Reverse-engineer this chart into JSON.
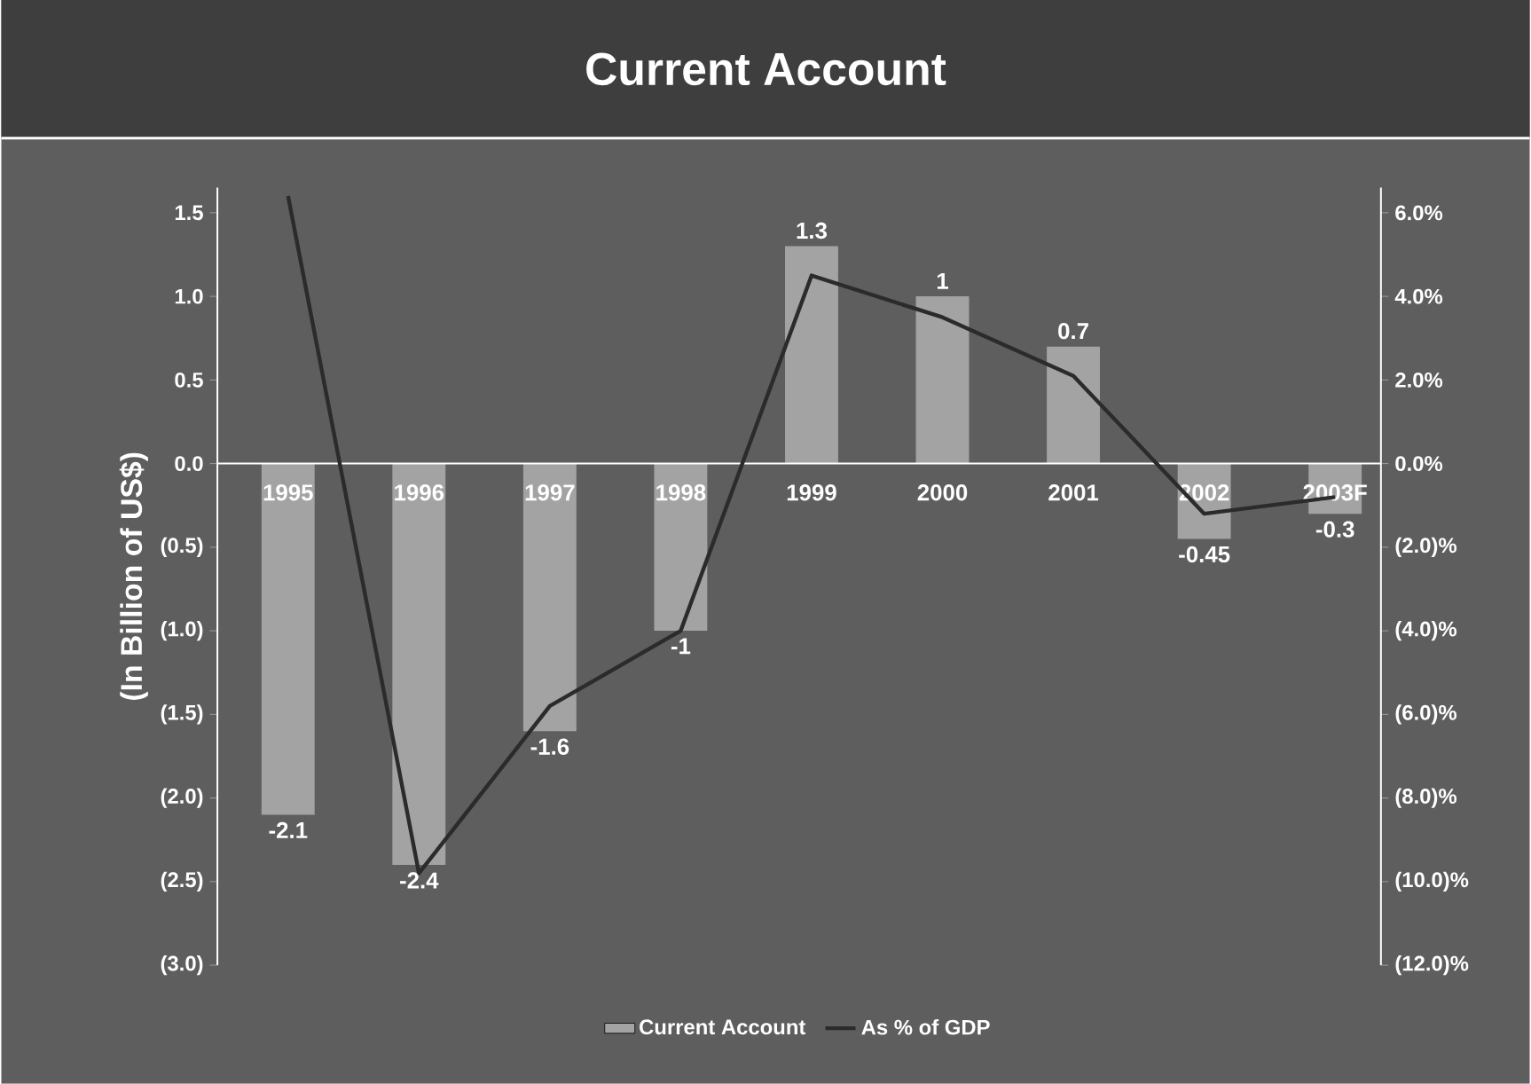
{
  "chart_data": {
    "type": "bar",
    "title": "Current Account",
    "ylabel": "(In Billion of US$)",
    "categories": [
      "1995",
      "1996",
      "1997",
      "1998",
      "1999",
      "2000",
      "2001",
      "2002",
      "2003F"
    ],
    "series": [
      {
        "name": "Current Account",
        "color": "#a3a3a3",
        "values": [
          -2.1,
          -2.4,
          -1.6,
          -1,
          1.3,
          1,
          0.7,
          -0.45,
          -0.3
        ],
        "value_labels": [
          "-2.1",
          "-2.4",
          "-1.6",
          "-1",
          "1.3",
          "1",
          "0.7",
          "-0.45",
          "-0.3"
        ]
      },
      {
        "name": "As % of GDP",
        "type": "line",
        "axis": "y2",
        "color": "#2b2b2b",
        "values": [
          6.4,
          -9.8,
          -5.8,
          -4.0,
          4.5,
          3.5,
          2.1,
          -1.2,
          -0.8
        ]
      }
    ],
    "ylim": [
      -3,
      1.65
    ],
    "yticks": [
      1.5,
      {
        "value": 1.0,
        "label": "1.0"
      },
      0.5,
      {
        "value": 0,
        "label": "0.0"
      },
      {
        "value": -0.5,
        "label": "(0.5)"
      },
      {
        "value": -1.0,
        "label": "(1.0)"
      },
      {
        "value": -1.5,
        "label": "(1.5)"
      },
      {
        "value": -2.0,
        "label": "(2.0)"
      },
      {
        "value": -2.5,
        "label": "(2.5)"
      },
      {
        "value": -3.0,
        "label": "(3.0)"
      }
    ],
    "y2lim": [
      -12,
      6.6
    ],
    "y2ticks": [
      {
        "value": 6,
        "label": "6.0%"
      },
      {
        "value": 4,
        "label": "4.0%"
      },
      {
        "value": 2,
        "label": "2.0%"
      },
      {
        "value": 0,
        "label": "0.0%"
      },
      {
        "value": -2,
        "label": "(2.0)%"
      },
      {
        "value": -4,
        "label": "(4.0)%"
      },
      {
        "value": -6,
        "label": "(6.0)%"
      },
      {
        "value": -8,
        "label": "(8.0)%"
      },
      {
        "value": -10,
        "label": "(10.0)%"
      },
      {
        "value": -12,
        "label": "(12.0)%"
      }
    ],
    "grid": false,
    "legend": "bottom",
    "marker": "none",
    "line_style": "solid"
  }
}
